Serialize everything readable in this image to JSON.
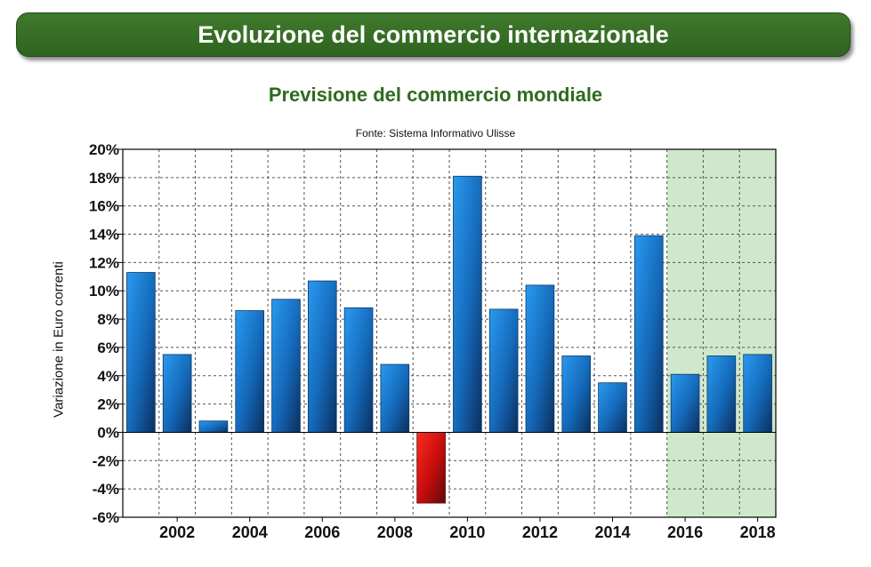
{
  "header": {
    "banner_title": "Evoluzione del commercio internazionale"
  },
  "chart_data": {
    "type": "bar",
    "title": "Previsione del commercio mondiale",
    "subtitle": "Fonte: Sistema Informativo Ulisse",
    "xlabel": "",
    "ylabel": "Variazione in Euro correnti",
    "categories": [
      "2001",
      "2002",
      "2003",
      "2004",
      "2005",
      "2006",
      "2007",
      "2008",
      "2009",
      "2010",
      "2011",
      "2012",
      "2013",
      "2014",
      "2015",
      "2016",
      "2017",
      "2018"
    ],
    "x_tick_labels": [
      "2002",
      "2004",
      "2006",
      "2008",
      "2010",
      "2012",
      "2014",
      "2016",
      "2018"
    ],
    "values": [
      11.3,
      5.5,
      0.8,
      8.6,
      9.4,
      10.7,
      8.8,
      4.8,
      -5.0,
      18.1,
      8.7,
      10.4,
      5.4,
      3.5,
      13.9,
      4.1,
      5.4,
      5.5
    ],
    "ylim": [
      -6,
      20
    ],
    "y_step": 2,
    "y_tick_labels": [
      "-6%",
      "-4%",
      "-2%",
      "0%",
      "2%",
      "4%",
      "6%",
      "8%",
      "10%",
      "12%",
      "14%",
      "16%",
      "18%",
      "20%"
    ],
    "forecast_categories": [
      "2016",
      "2017",
      "2018"
    ],
    "grid": true,
    "colors": {
      "positive": "#1a7fd6",
      "negative": "#cc1010",
      "forecast_band": "#cfe8cc",
      "title": "#2e6b1f",
      "banner": "#3a7228"
    }
  }
}
